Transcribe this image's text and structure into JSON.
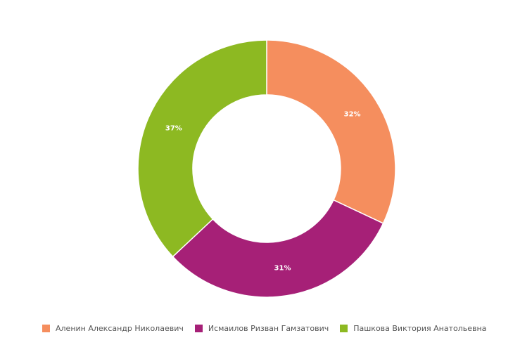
{
  "chart_data": {
    "type": "pie",
    "variant": "donut",
    "categories": [
      "Аленин Александр Николаевич",
      "Исмаилов Ризван Гамзатович",
      "Пашкова Виктория Анатольевна"
    ],
    "values": [
      32,
      31,
      37
    ],
    "value_labels": [
      "32%",
      "31%",
      "37%"
    ],
    "colors": [
      "#F58E5E",
      "#A62077",
      "#8DB922"
    ],
    "legend_position": "bottom-left",
    "start_angle_deg": 0,
    "direction": "clockwise"
  }
}
